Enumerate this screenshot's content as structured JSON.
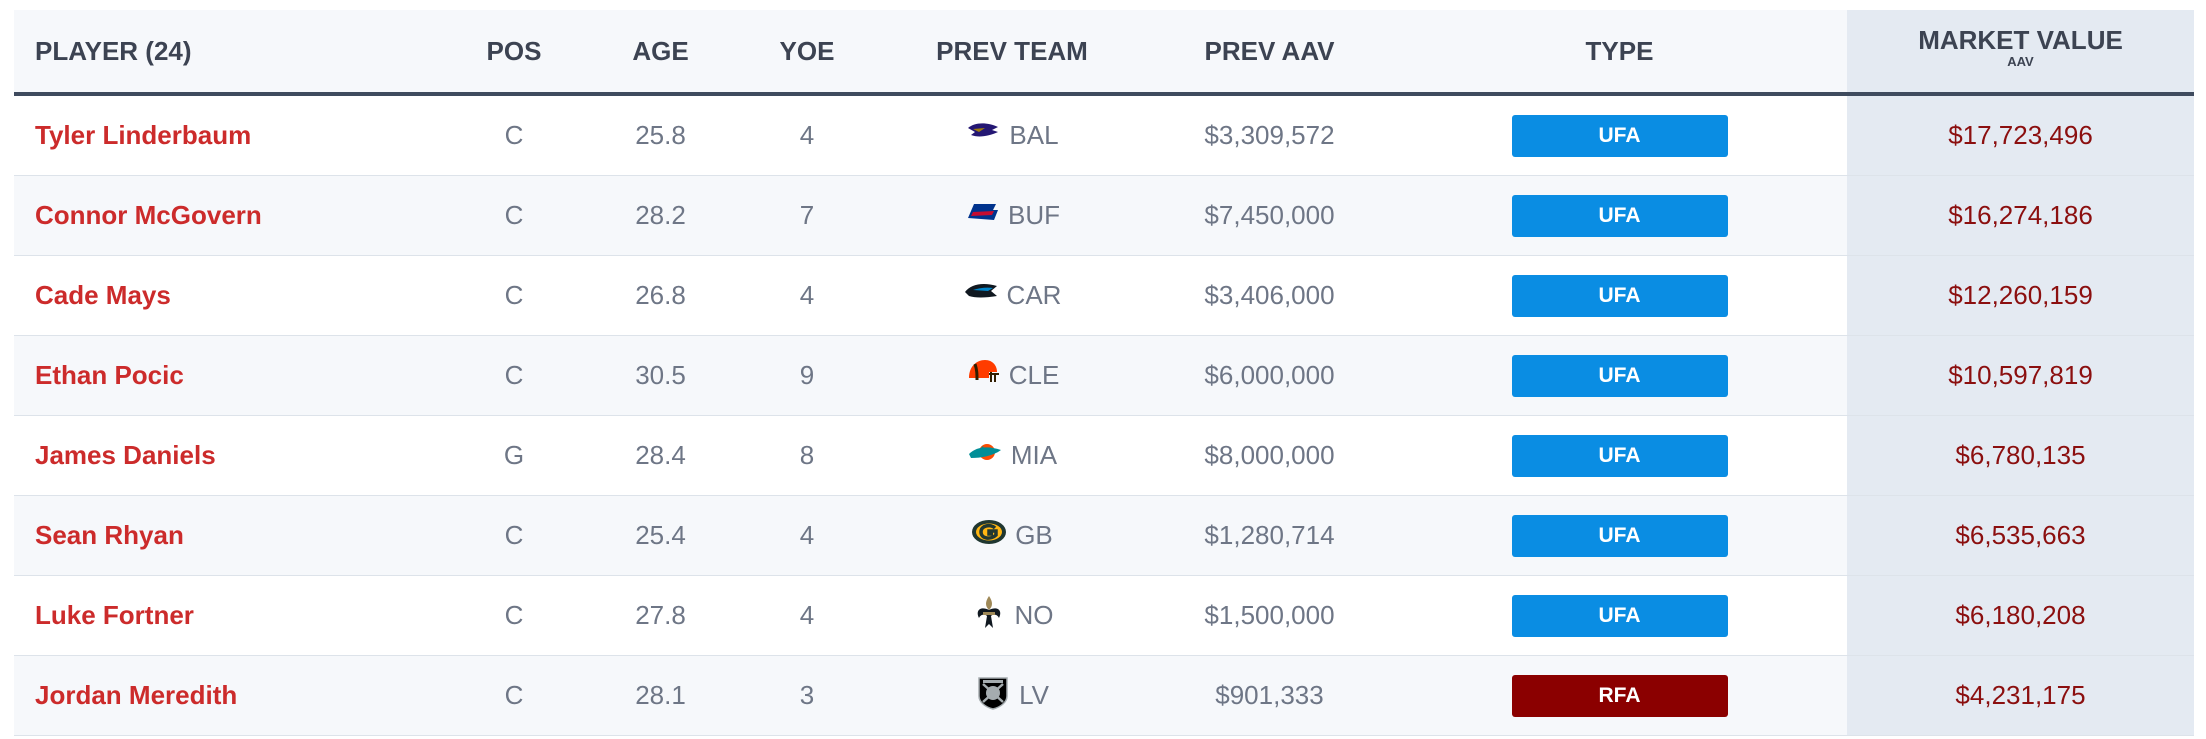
{
  "header": {
    "player": "PLAYER (24)",
    "pos": "POS",
    "age": "AGE",
    "yoe": "YOE",
    "prev_team": "PREV TEAM",
    "prev_aav": "PREV AAV",
    "type": "TYPE",
    "market_value": "MARKET VALUE",
    "market_value_sub": "AAV"
  },
  "colors": {
    "ufa": "#0a8de3",
    "rfa": "#8b0000",
    "player_name": "#cc2b2b",
    "market_value": "#8b0f0f"
  },
  "rows": [
    {
      "player": "Tyler Linderbaum",
      "pos": "C",
      "age": "25.8",
      "yoe": "4",
      "team": "BAL",
      "team_icon": "ravens-logo-icon",
      "prev_aav": "$3,309,572",
      "type": "UFA",
      "market_value": "$17,723,496"
    },
    {
      "player": "Connor McGovern",
      "pos": "C",
      "age": "28.2",
      "yoe": "7",
      "team": "BUF",
      "team_icon": "bills-logo-icon",
      "prev_aav": "$7,450,000",
      "type": "UFA",
      "market_value": "$16,274,186"
    },
    {
      "player": "Cade Mays",
      "pos": "C",
      "age": "26.8",
      "yoe": "4",
      "team": "CAR",
      "team_icon": "panthers-logo-icon",
      "prev_aav": "$3,406,000",
      "type": "UFA",
      "market_value": "$12,260,159"
    },
    {
      "player": "Ethan Pocic",
      "pos": "C",
      "age": "30.5",
      "yoe": "9",
      "team": "CLE",
      "team_icon": "browns-logo-icon",
      "prev_aav": "$6,000,000",
      "type": "UFA",
      "market_value": "$10,597,819"
    },
    {
      "player": "James Daniels",
      "pos": "G",
      "age": "28.4",
      "yoe": "8",
      "team": "MIA",
      "team_icon": "dolphins-logo-icon",
      "prev_aav": "$8,000,000",
      "type": "UFA",
      "market_value": "$6,780,135"
    },
    {
      "player": "Sean Rhyan",
      "pos": "C",
      "age": "25.4",
      "yoe": "4",
      "team": "GB",
      "team_icon": "packers-logo-icon",
      "prev_aav": "$1,280,714",
      "type": "UFA",
      "market_value": "$6,535,663"
    },
    {
      "player": "Luke Fortner",
      "pos": "C",
      "age": "27.8",
      "yoe": "4",
      "team": "NO",
      "team_icon": "saints-logo-icon",
      "prev_aav": "$1,500,000",
      "type": "UFA",
      "market_value": "$6,180,208"
    },
    {
      "player": "Jordan Meredith",
      "pos": "C",
      "age": "28.1",
      "yoe": "3",
      "team": "LV",
      "team_icon": "raiders-logo-icon",
      "prev_aav": "$901,333",
      "type": "RFA",
      "market_value": "$4,231,175"
    }
  ]
}
